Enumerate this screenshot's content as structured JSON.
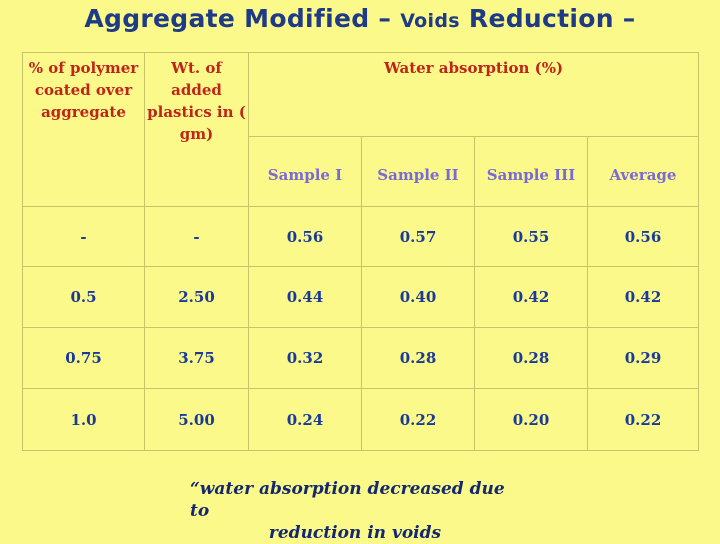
{
  "title": {
    "main": "Aggregate Modified –",
    "small": "Voids",
    "rest": "Reduction –"
  },
  "table": {
    "header": {
      "col1": "% of polymer coated over aggregate",
      "col2": "Wt. of added plastics in ( gm)",
      "group": "Water absorption (%)",
      "samples": [
        "Sample I",
        "Sample II",
        "Sample III",
        "Average"
      ]
    },
    "rows": [
      [
        "-",
        "-",
        "0.56",
        "0.57",
        "0.55",
        "0.56"
      ],
      [
        "0.5",
        "2.50",
        "0.44",
        "0.40",
        "0.42",
        "0.42"
      ],
      [
        "0.75",
        "3.75",
        "0.32",
        "0.28",
        "0.28",
        "0.29"
      ],
      [
        "1.0",
        "5.00",
        "0.24",
        "0.22",
        "0.20",
        "0.22"
      ]
    ]
  },
  "quote": {
    "line1": "“water absorption decreased due to",
    "line2": "reduction in voids"
  },
  "colors": {
    "background": "#fbf98a",
    "title": "#1f3a87",
    "header": "#c0241a",
    "subheader": "#7b6ad6",
    "values": "#1a3a9a"
  }
}
